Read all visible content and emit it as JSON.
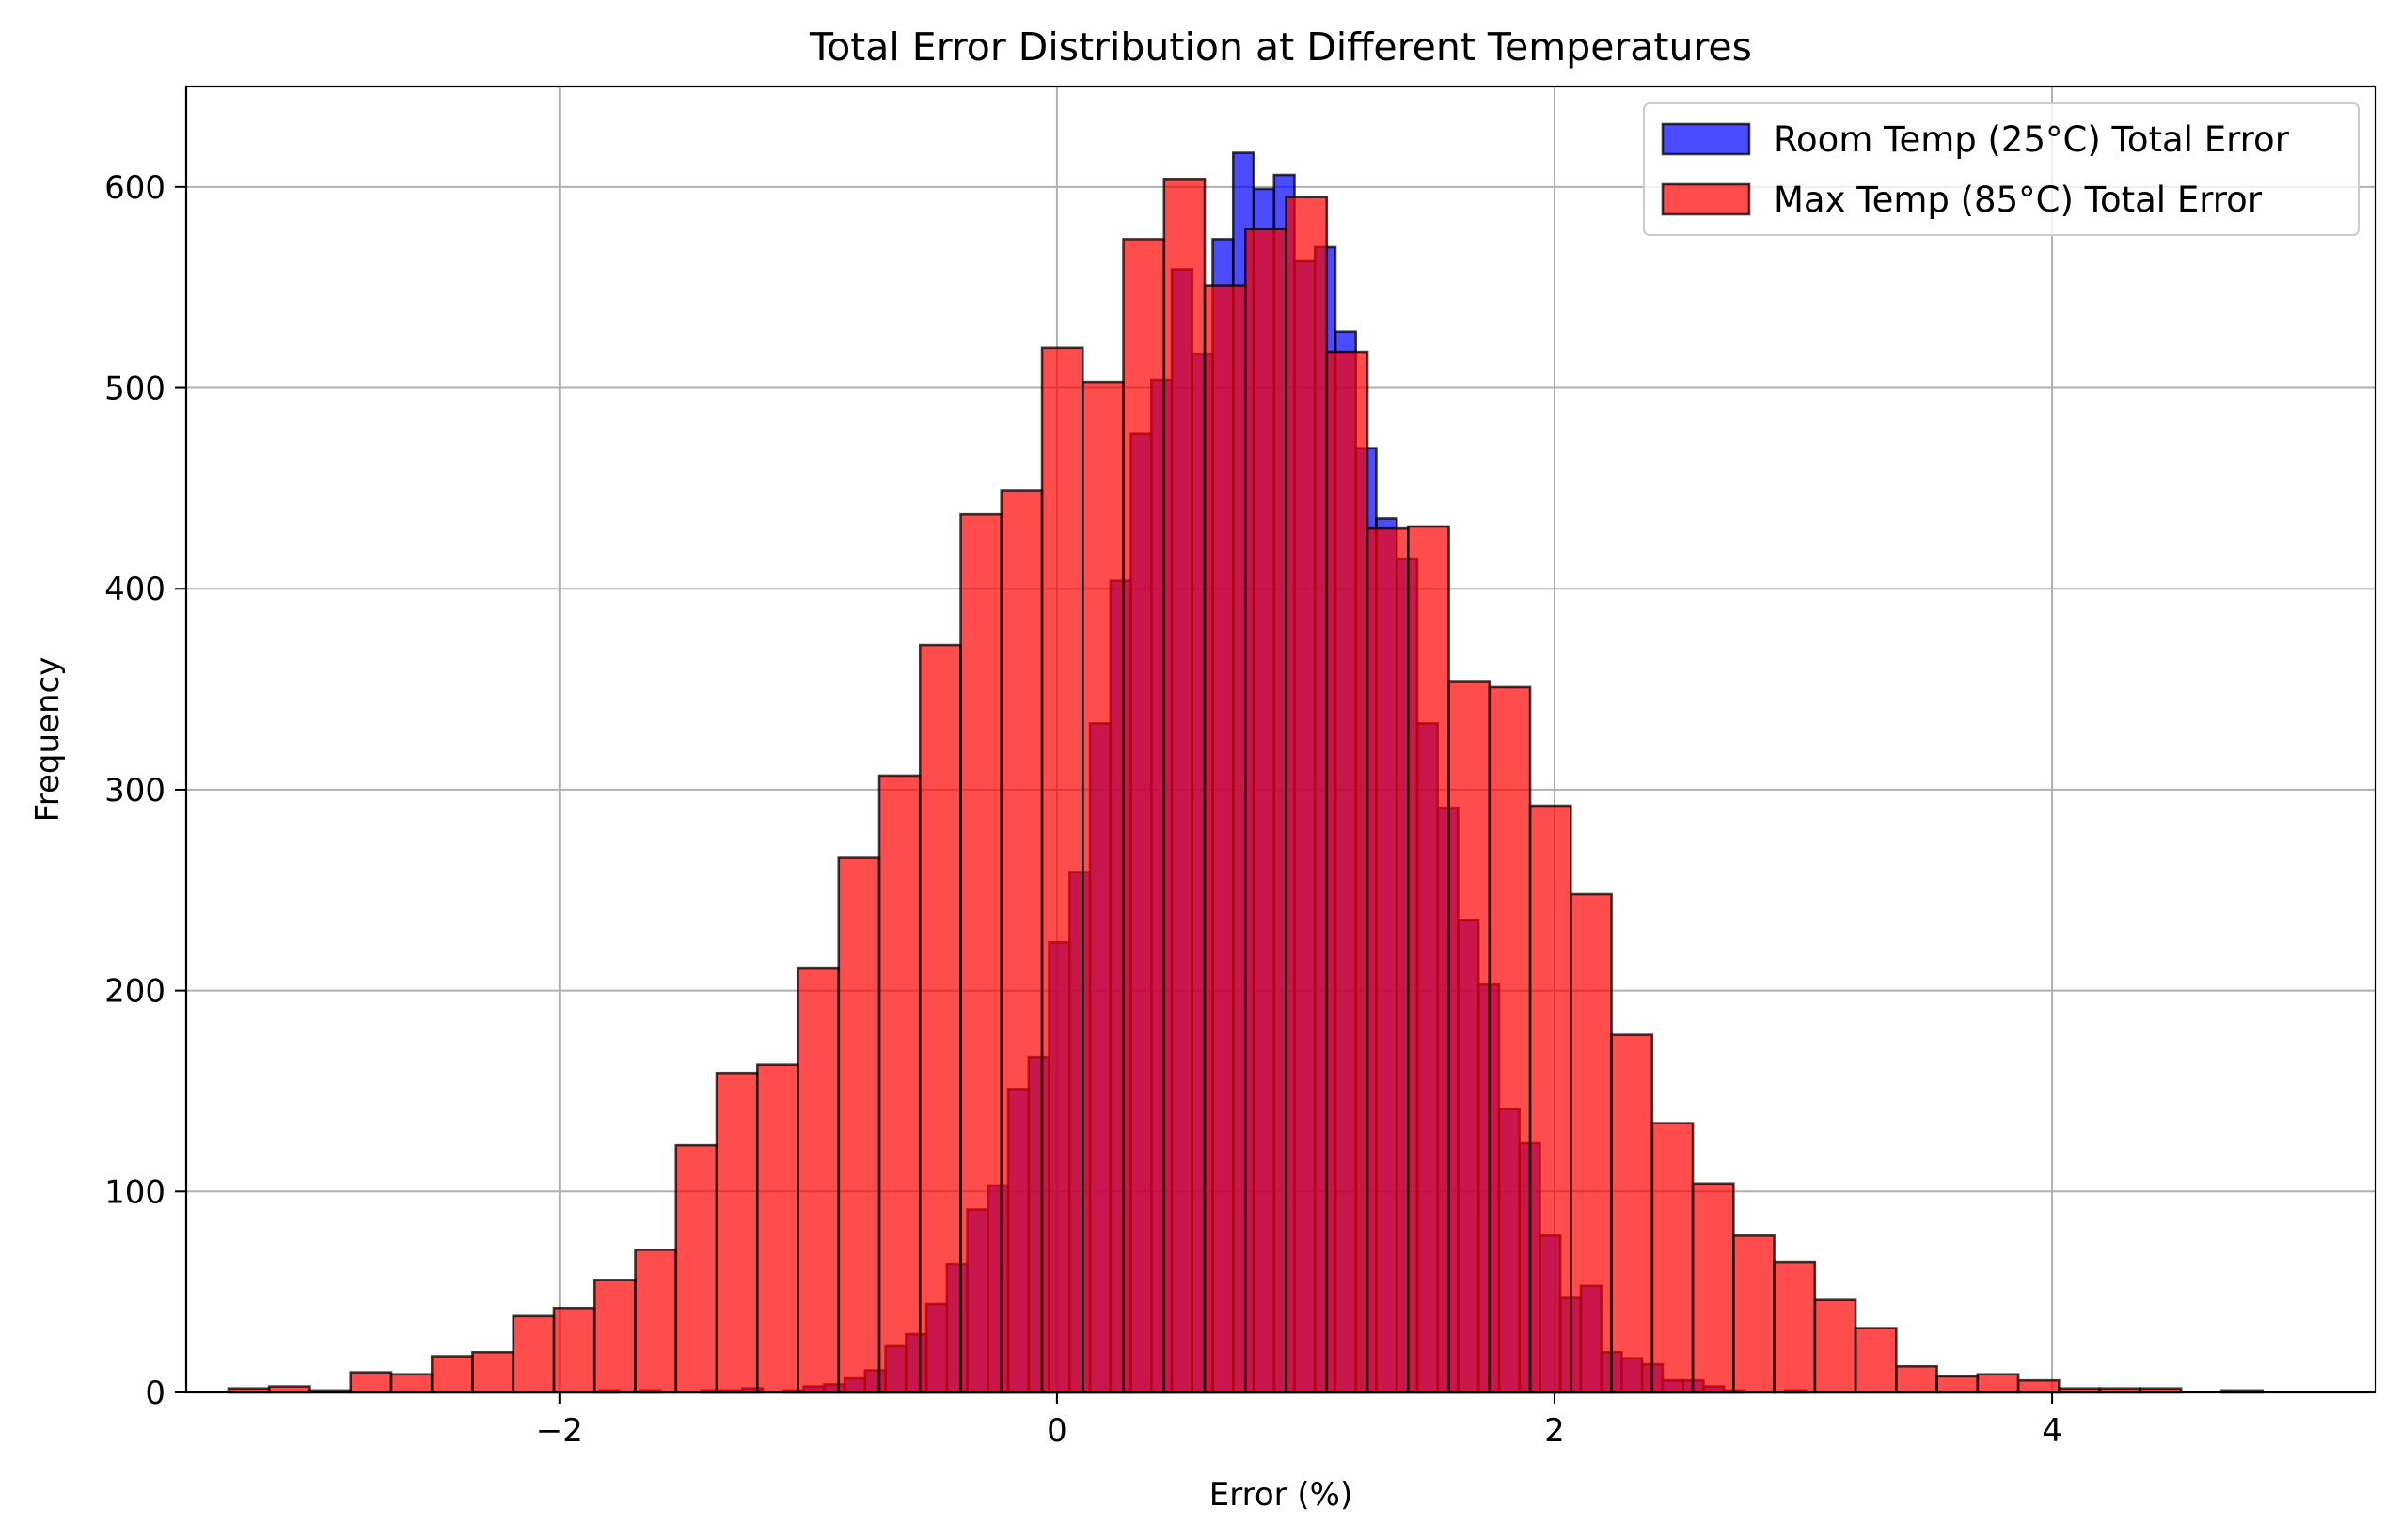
{
  "chart_data": {
    "type": "bar",
    "title": "Total Error Distribution at Different Temperatures",
    "xlabel": "Error (%)",
    "ylabel": "Frequency",
    "xlim": [
      -3.5,
      5.3
    ],
    "ylim": [
      0,
      650
    ],
    "xticks": [
      -2,
      0,
      2,
      4
    ],
    "xtick_labels": [
      "−2",
      "0",
      "2",
      "4"
    ],
    "yticks": [
      0,
      100,
      200,
      300,
      400,
      500,
      600
    ],
    "ytick_labels": [
      "0",
      "100",
      "200",
      "300",
      "400",
      "500",
      "600"
    ],
    "grid": true,
    "legend_position": "top-right",
    "series": [
      {
        "name": "Room Temp (25°C) Total Error",
        "color": "#0000ff",
        "alpha": 0.7,
        "bin_start": -1.84,
        "bin_width": 0.0822,
        "values": [
          1,
          0,
          1,
          0,
          0,
          1,
          1,
          2,
          0,
          1,
          3,
          4,
          7,
          11,
          23,
          29,
          44,
          64,
          91,
          103,
          151,
          167,
          224,
          259,
          333,
          404,
          477,
          504,
          559,
          517,
          574,
          617,
          599,
          606,
          563,
          570,
          528,
          470,
          435,
          415,
          333,
          291,
          235,
          203,
          141,
          124,
          78,
          47,
          53,
          20,
          17,
          14,
          6,
          6,
          3,
          1,
          0,
          0,
          1
        ]
      },
      {
        "name": "Max Temp (85°C) Total Error",
        "color": "#ff0000",
        "alpha": 0.7,
        "bin_start": -3.33,
        "bin_width": 0.1635,
        "values": [
          2,
          3,
          1,
          10,
          9,
          18,
          20,
          38,
          42,
          56,
          71,
          123,
          159,
          163,
          211,
          266,
          307,
          372,
          437,
          449,
          520,
          503,
          574,
          604,
          551,
          579,
          595,
          518,
          430,
          431,
          354,
          351,
          292,
          248,
          178,
          134,
          104,
          78,
          65,
          46,
          32,
          13,
          8,
          9,
          6,
          2,
          2,
          2,
          0,
          1
        ]
      }
    ]
  }
}
